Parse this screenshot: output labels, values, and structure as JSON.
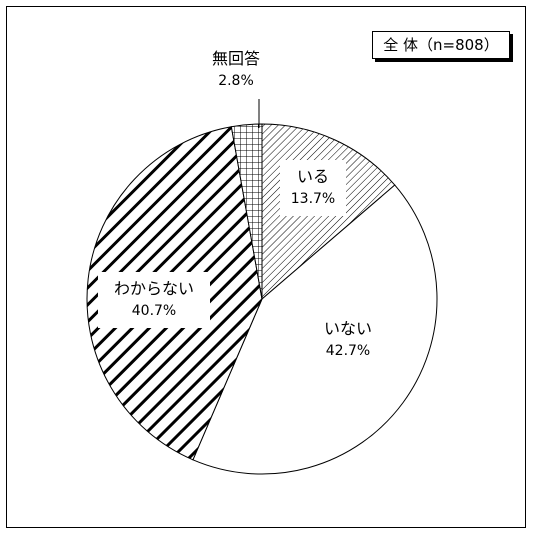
{
  "chart_data": {
    "type": "pie",
    "title": "全 体（n=808）",
    "start": "12 o'clock, clockwise",
    "slices": [
      {
        "label": "いる",
        "value": 13.7,
        "value_label": "13.7%",
        "pattern": "fine-diagonal-hatch"
      },
      {
        "label": "いない",
        "value": 42.7,
        "value_label": "42.7%",
        "pattern": "none"
      },
      {
        "label": "わからない",
        "value": 40.7,
        "value_label": "40.7%",
        "pattern": "bold-diagonal-stripes"
      },
      {
        "label": "無回答",
        "value": 2.8,
        "value_label": "2.8%",
        "pattern": "grid"
      }
    ]
  },
  "colors": {
    "ink": "#000000",
    "background": "#ffffff"
  }
}
